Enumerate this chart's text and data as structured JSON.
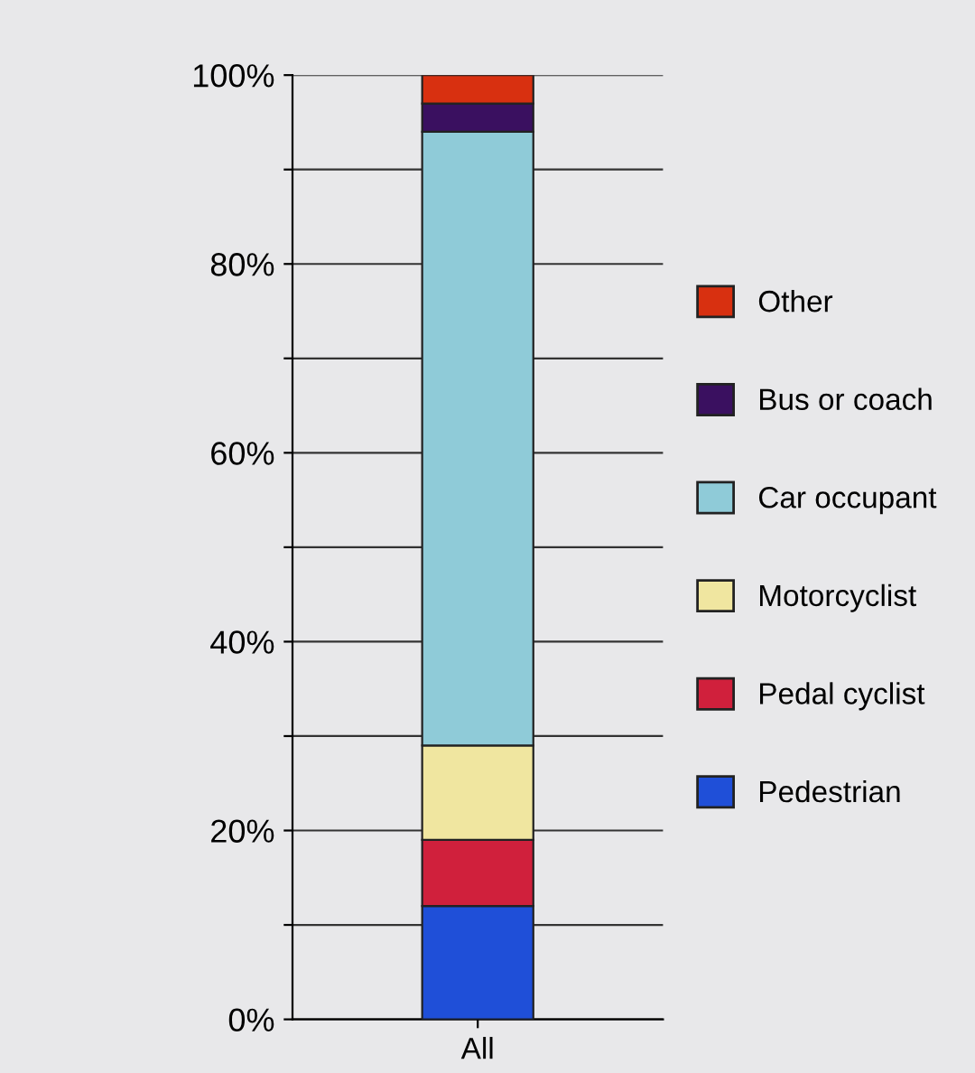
{
  "chart_data": {
    "type": "bar",
    "stacked": true,
    "categories": [
      "All"
    ],
    "series": [
      {
        "name": "Pedestrian",
        "color": "#1f4fd8",
        "values": [
          12
        ]
      },
      {
        "name": "Pedal cyclist",
        "color": "#d0203c",
        "values": [
          7
        ]
      },
      {
        "name": "Motorcyclist",
        "color": "#f0e6a0",
        "values": [
          10
        ]
      },
      {
        "name": "Car occupant",
        "color": "#8fcbd8",
        "values": [
          65
        ]
      },
      {
        "name": "Bus or coach",
        "color": "#3a1060",
        "values": [
          3
        ]
      },
      {
        "name": "Other",
        "color": "#d83010",
        "values": [
          3
        ]
      }
    ],
    "ylim": [
      0,
      100
    ],
    "yticks": [
      {
        "value": 0,
        "label": "0%"
      },
      {
        "value": 10,
        "label": null
      },
      {
        "value": 20,
        "label": "20%"
      },
      {
        "value": 30,
        "label": null
      },
      {
        "value": 40,
        "label": "40%"
      },
      {
        "value": 50,
        "label": null
      },
      {
        "value": 60,
        "label": "60%"
      },
      {
        "value": 70,
        "label": null
      },
      {
        "value": 80,
        "label": "80%"
      },
      {
        "value": 90,
        "label": null
      },
      {
        "value": 100,
        "label": "100%"
      }
    ],
    "grid": "y",
    "legend": "right"
  }
}
